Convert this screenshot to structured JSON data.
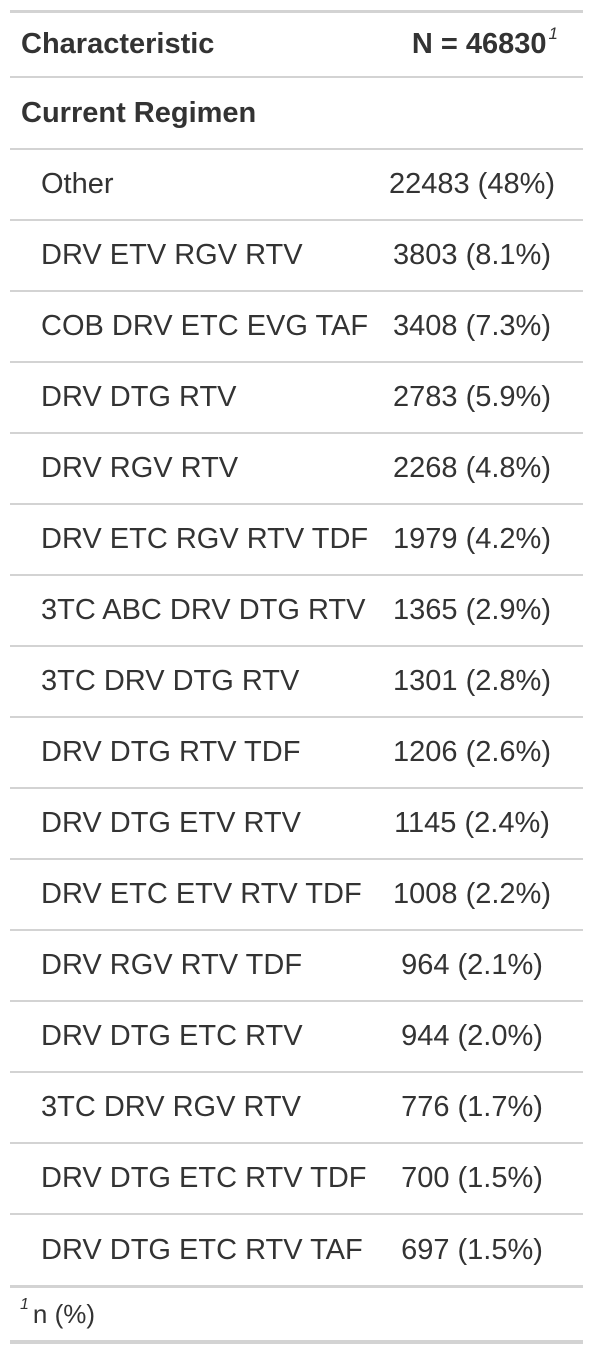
{
  "header": {
    "characteristic": "Characteristic",
    "n_label": "N = 46830",
    "n_footnote_marker": "1"
  },
  "group": {
    "label": "Current Regimen"
  },
  "rows": [
    {
      "label": "Other",
      "value": "22483 (48%)"
    },
    {
      "label": "DRV ETV RGV RTV",
      "value": "3803 (8.1%)"
    },
    {
      "label": "COB DRV ETC EVG TAF",
      "value": "3408 (7.3%)"
    },
    {
      "label": "DRV DTG RTV",
      "value": "2783 (5.9%)"
    },
    {
      "label": "DRV RGV RTV",
      "value": "2268 (4.8%)"
    },
    {
      "label": "DRV ETC RGV RTV TDF",
      "value": "1979 (4.2%)"
    },
    {
      "label": "3TC ABC DRV DTG RTV",
      "value": "1365 (2.9%)"
    },
    {
      "label": "3TC DRV DTG RTV",
      "value": "1301 (2.8%)"
    },
    {
      "label": "DRV DTG RTV TDF",
      "value": "1206 (2.6%)"
    },
    {
      "label": "DRV DTG ETV RTV",
      "value": "1145 (2.4%)"
    },
    {
      "label": "DRV ETC ETV RTV TDF",
      "value": "1008 (2.2%)"
    },
    {
      "label": "DRV RGV RTV TDF",
      "value": "964 (2.1%)"
    },
    {
      "label": "DRV DTG ETC RTV",
      "value": "944 (2.0%)"
    },
    {
      "label": "3TC DRV RGV RTV",
      "value": "776 (1.7%)"
    },
    {
      "label": "DRV DTG ETC RTV TDF",
      "value": "700 (1.5%)"
    },
    {
      "label": "DRV DTG ETC RTV TAF",
      "value": "697 (1.5%)"
    }
  ],
  "footnote": {
    "marker": "1",
    "text": "n (%)"
  }
}
